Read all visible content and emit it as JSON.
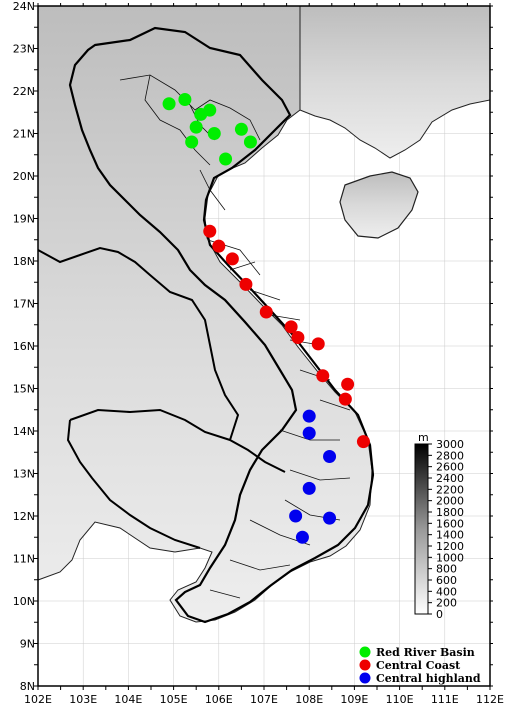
{
  "map": {
    "lon_ticks": [
      "102E",
      "103E",
      "104E",
      "105E",
      "106E",
      "107E",
      "108E",
      "109E",
      "110E",
      "111E",
      "112E"
    ],
    "lat_ticks": [
      "8N",
      "9N",
      "10N",
      "11N",
      "12N",
      "13N",
      "14N",
      "15N",
      "16N",
      "17N",
      "18N",
      "19N",
      "20N",
      "21N",
      "22N",
      "23N",
      "24N"
    ],
    "lon_range": [
      102,
      112
    ],
    "lat_range": [
      8,
      24
    ]
  },
  "colorbar": {
    "unit": "m",
    "labels": [
      "0",
      "200",
      "400",
      "600",
      "800",
      "1000",
      "1200",
      "1400",
      "1600",
      "1800",
      "2000",
      "2200",
      "2400",
      "2600",
      "2800",
      "3000"
    ]
  },
  "legend": {
    "items": [
      {
        "label": "Red River Basin",
        "color": "#00ee00"
      },
      {
        "label": "Central Coast",
        "color": "#ee0000"
      },
      {
        "label": "Central highland",
        "color": "#0000ee"
      }
    ]
  },
  "stations": {
    "red_river": [
      [
        104.9,
        21.7
      ],
      [
        105.25,
        21.8
      ],
      [
        105.6,
        21.45
      ],
      [
        105.8,
        21.55
      ],
      [
        105.5,
        21.15
      ],
      [
        105.4,
        20.8
      ],
      [
        105.9,
        21.0
      ],
      [
        106.5,
        21.1
      ],
      [
        106.7,
        20.8
      ],
      [
        106.15,
        20.4
      ]
    ],
    "central_coast": [
      [
        105.8,
        18.7
      ],
      [
        106.0,
        18.35
      ],
      [
        106.3,
        18.05
      ],
      [
        106.6,
        17.45
      ],
      [
        107.05,
        16.8
      ],
      [
        107.6,
        16.45
      ],
      [
        107.75,
        16.2
      ],
      [
        108.2,
        16.05
      ],
      [
        108.3,
        15.3
      ],
      [
        108.85,
        15.1
      ],
      [
        108.8,
        14.75
      ],
      [
        109.2,
        13.75
      ]
    ],
    "central_highland": [
      [
        108.0,
        14.35
      ],
      [
        108.0,
        13.95
      ],
      [
        108.45,
        13.4
      ],
      [
        108.0,
        12.65
      ],
      [
        107.7,
        12.0
      ],
      [
        108.45,
        11.95
      ],
      [
        107.85,
        11.5
      ]
    ]
  }
}
